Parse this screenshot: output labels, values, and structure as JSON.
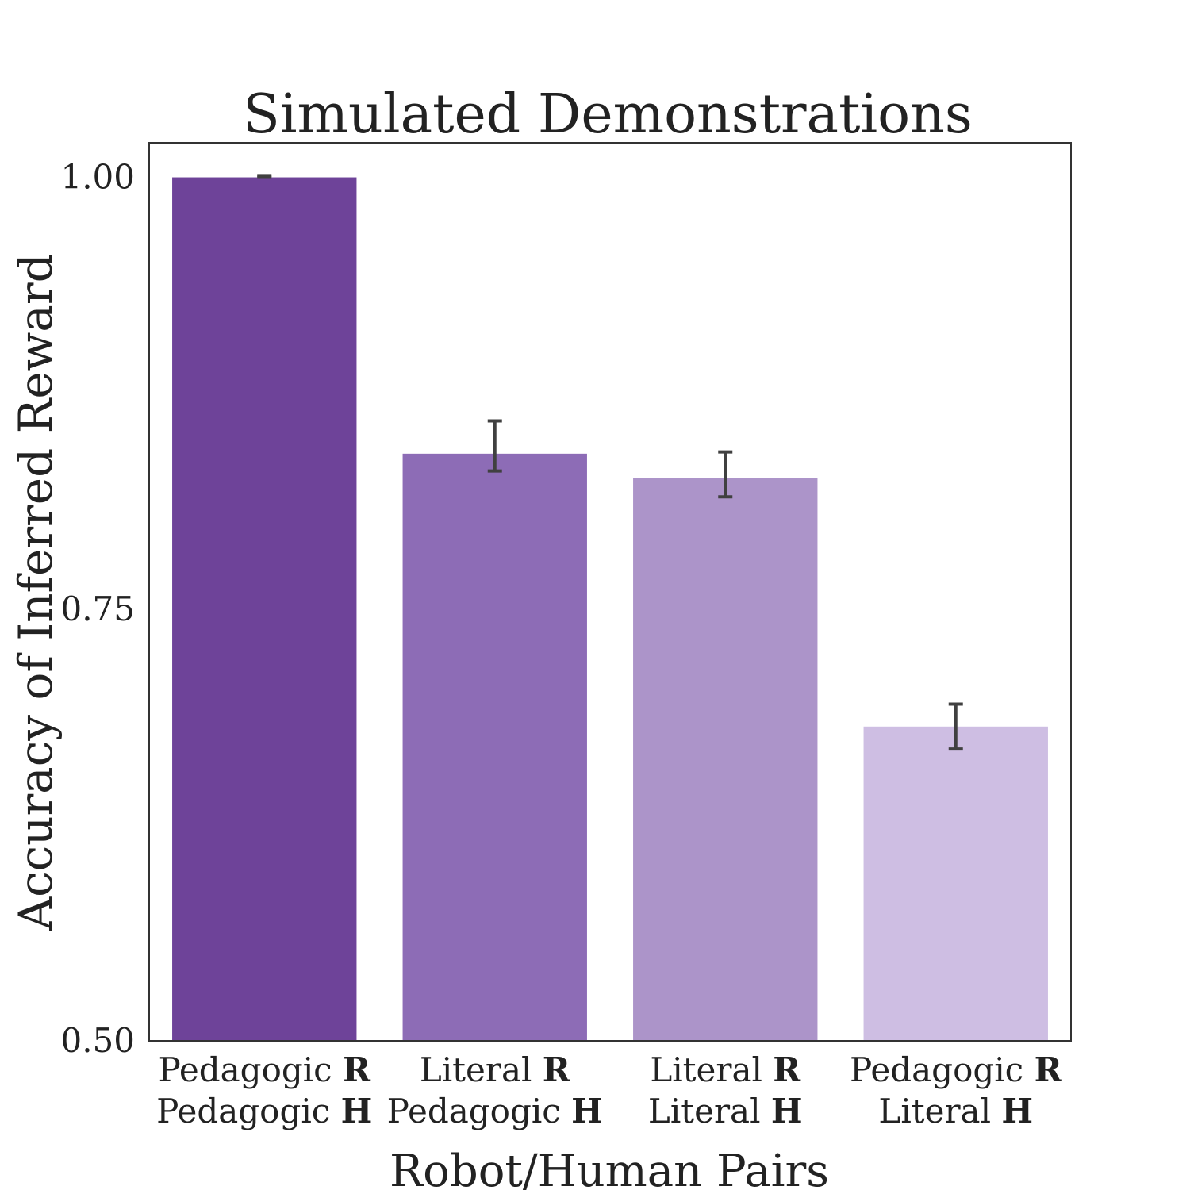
{
  "chart_data": {
    "type": "bar",
    "title": "Simulated Demonstrations",
    "xlabel": "Robot/Human Pairs",
    "ylabel": "Accuracy of Inferred Reward",
    "ylim": [
      0.5,
      1.02
    ],
    "yticks": [
      "0.50",
      "0.75",
      "1.00"
    ],
    "ytick_values": [
      0.5,
      0.75,
      1.0
    ],
    "grid": false,
    "categories": [
      {
        "line1": "Pedagogic ",
        "line1_bold": "R",
        "line2": "Pedagogic ",
        "line2_bold": "H"
      },
      {
        "line1": "Literal ",
        "line1_bold": "R",
        "line2": "Pedagogic ",
        "line2_bold": "H"
      },
      {
        "line1": "Literal ",
        "line1_bold": "R",
        "line2": "Literal ",
        "line2_bold": "H"
      },
      {
        "line1": "Pedagogic ",
        "line1_bold": "R",
        "line2": "Literal ",
        "line2_bold": "H"
      }
    ],
    "values": [
      1.0,
      0.84,
      0.826,
      0.682
    ],
    "error_low": [
      1.0,
      0.83,
      0.815,
      0.669
    ],
    "error_high": [
      1.001,
      0.859,
      0.841,
      0.695
    ],
    "colors": [
      "#6e4399",
      "#8d6cb6",
      "#ac94c9",
      "#cebee3"
    ],
    "error_color": "#404040"
  }
}
